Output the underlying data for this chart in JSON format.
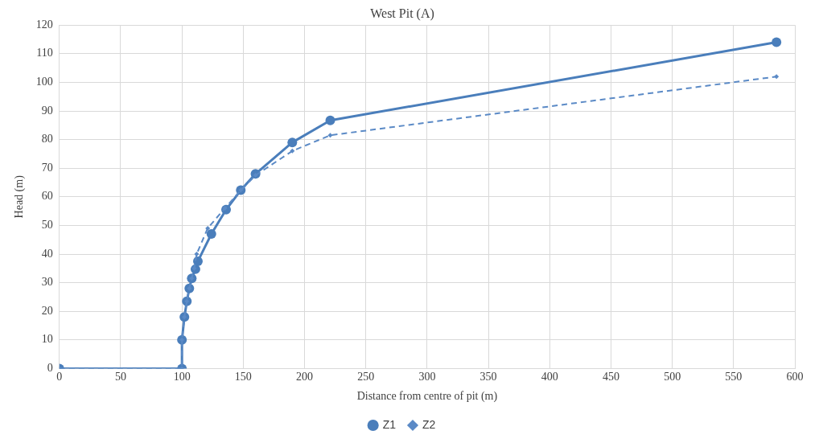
{
  "chart_data": {
    "type": "line",
    "title": "West Pit (A)",
    "xlabel": "Distance from centre of pit (m)",
    "ylabel": "Head (m)",
    "xlim": [
      0,
      600
    ],
    "xticks": [
      0,
      50,
      100,
      150,
      200,
      250,
      300,
      350,
      400,
      450,
      500,
      550,
      600
    ],
    "ylim": [
      0,
      120
    ],
    "yticks": [
      0,
      10,
      20,
      30,
      40,
      50,
      60,
      70,
      80,
      90,
      100,
      110,
      120
    ],
    "grid": true,
    "legend": "bottom",
    "series": [
      {
        "name": "Z1",
        "color": "#4a7ebb",
        "marker": "circle",
        "line_style": "solid",
        "x": [
          0,
          100,
          100,
          102,
          104,
          106,
          108,
          111,
          113,
          124,
          136,
          148,
          160,
          190,
          221,
          585
        ],
        "values": [
          0,
          0,
          10,
          18,
          23.5,
          28,
          31.5,
          34.7,
          37.5,
          47,
          55.5,
          62.3,
          68,
          79,
          86.7,
          114
        ]
      },
      {
        "name": "Z2",
        "color": "#5b8ac6",
        "marker": "diamond",
        "line_style": "dashed",
        "x": [
          0,
          100,
          100,
          102,
          104,
          106,
          108,
          110,
          112,
          121,
          135,
          148,
          160,
          190,
          221,
          585
        ],
        "values": [
          0,
          0,
          10,
          18,
          23.5,
          28,
          31.5,
          35,
          40,
          49,
          56,
          62.3,
          67.5,
          76,
          81.5,
          102
        ]
      }
    ]
  }
}
